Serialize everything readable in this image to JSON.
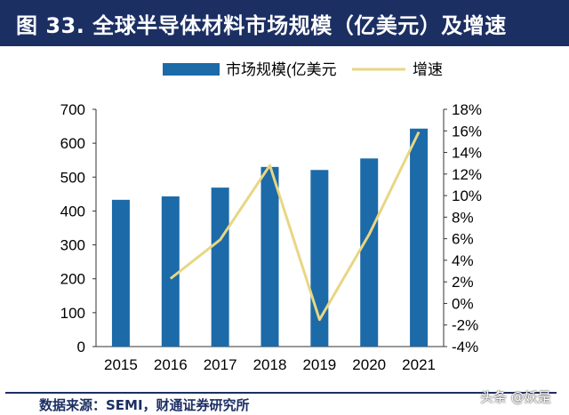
{
  "header": {
    "title": "图 33. 全球半导体材料市场规模（亿美元）及增速"
  },
  "footer": {
    "source": "数据来源：SEMI，财通证券研究所",
    "watermark": "头条 @妖是"
  },
  "colors": {
    "header_bg": "#1c2f63",
    "bar": "#1c6aa8",
    "line": "#e8d683",
    "source_text": "#1c2f63"
  },
  "chart_data": {
    "type": "bar",
    "categories": [
      "2015",
      "2016",
      "2017",
      "2018",
      "2019",
      "2020",
      "2021"
    ],
    "series": [
      {
        "name": "市场规模(亿美元",
        "type": "bar",
        "axis": "left",
        "values": [
          433,
          443,
          469,
          530,
          521,
          555,
          643
        ]
      },
      {
        "name": "增速",
        "type": "line",
        "axis": "right",
        "values": [
          null,
          2.3,
          5.9,
          12.8,
          -1.5,
          6.4,
          15.9
        ]
      }
    ],
    "y_left": {
      "ylim": [
        0,
        700
      ],
      "ticks": [
        "0",
        "100",
        "200",
        "300",
        "400",
        "500",
        "600",
        "700"
      ]
    },
    "y_right": {
      "ylim": [
        -4,
        18
      ],
      "ticks": [
        "-4%",
        "-2%",
        "0%",
        "2%",
        "4%",
        "6%",
        "8%",
        "10%",
        "12%",
        "14%",
        "16%",
        "18%"
      ]
    },
    "legend_position": "top-center",
    "grid": false
  }
}
